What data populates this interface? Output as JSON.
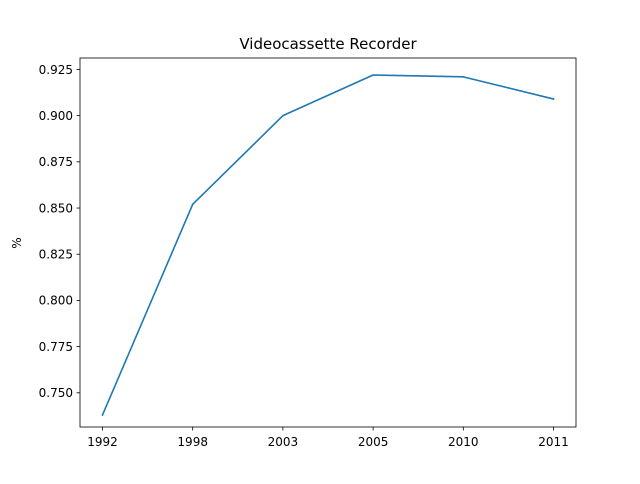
{
  "chart_data": {
    "type": "line",
    "title": "Videocassette Recorder",
    "xlabel": "",
    "ylabel": "%",
    "categories": [
      "1992",
      "1998",
      "2003",
      "2005",
      "2010",
      "2011"
    ],
    "series": [
      {
        "values": [
          0.738,
          0.852,
          0.9,
          0.922,
          0.921,
          0.909
        ],
        "color": "#1f77b4"
      }
    ],
    "ylim": [
      0.7315,
      0.9312
    ],
    "yticks": [
      0.75,
      0.775,
      0.8,
      0.825,
      0.85,
      0.875,
      0.9,
      0.925
    ],
    "ytick_labels": [
      "0.750",
      "0.775",
      "0.800",
      "0.825",
      "0.850",
      "0.875",
      "0.900",
      "0.925"
    ],
    "grid": false,
    "legend": "none"
  }
}
